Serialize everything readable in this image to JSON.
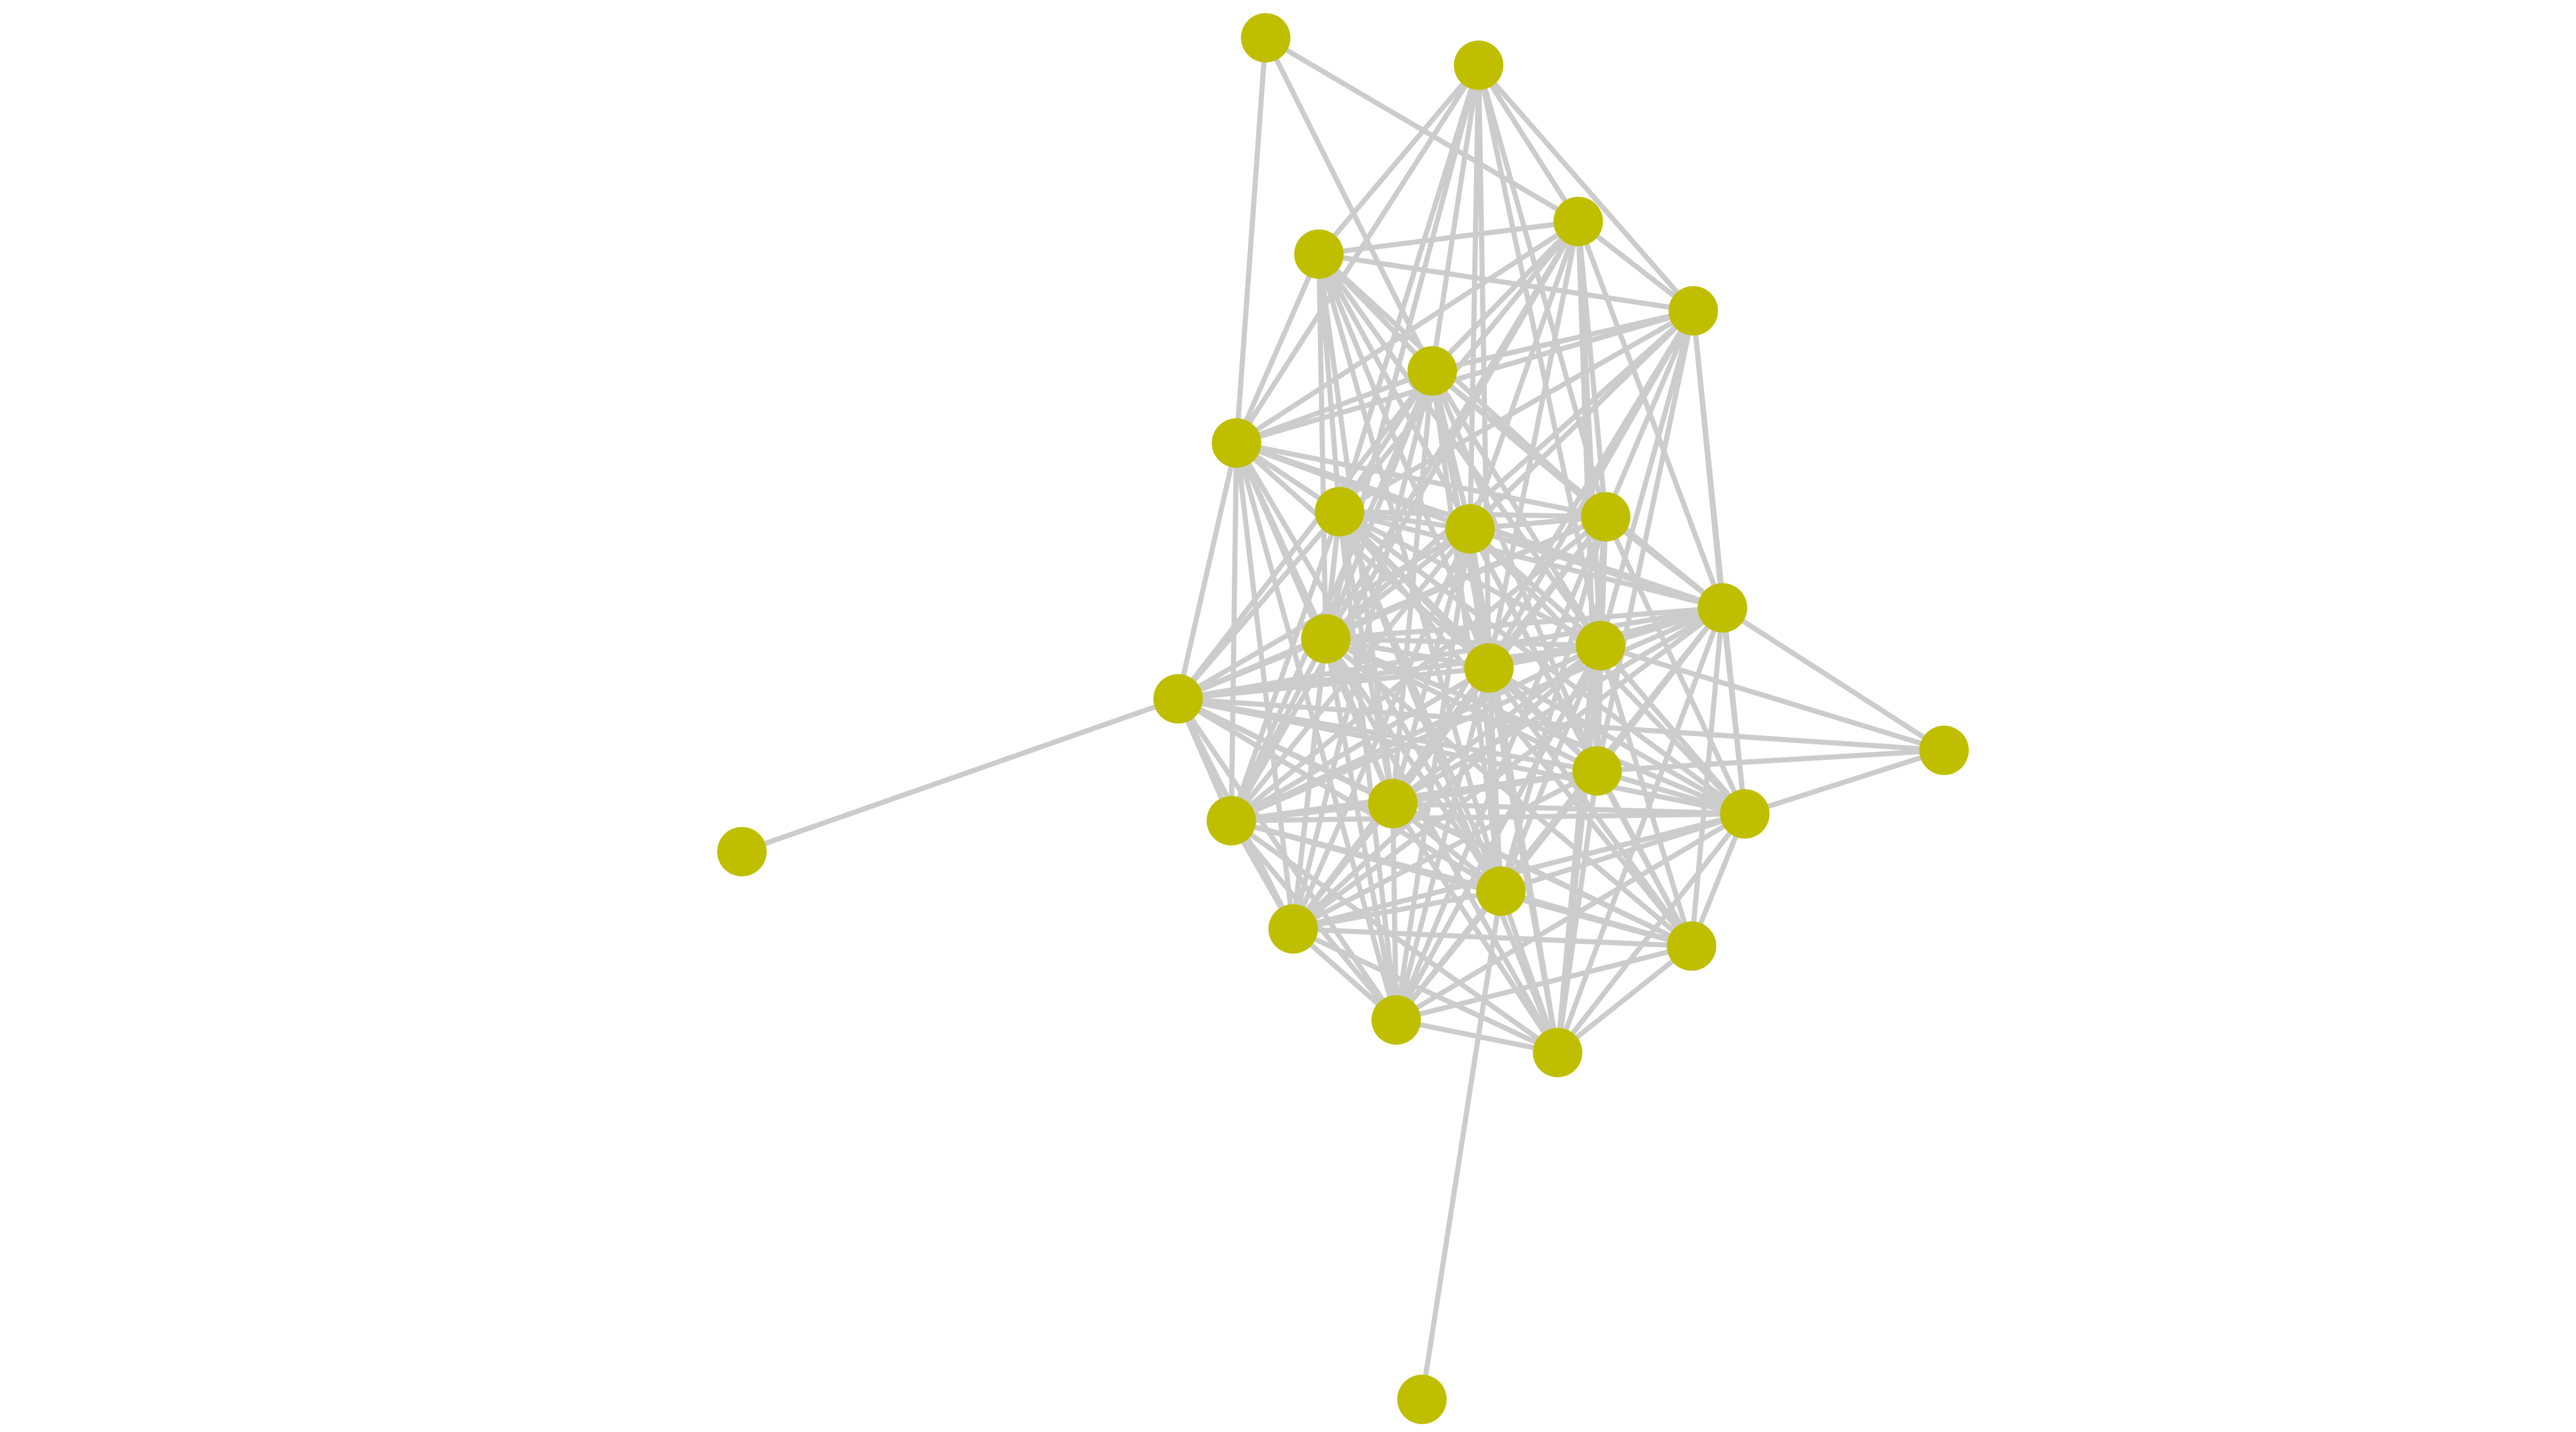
{
  "chart_data": {
    "type": "network",
    "directed": false,
    "node_color": "#bfbf00",
    "edge_color": "#cccccc",
    "background": "#ffffff",
    "labels_shown": false,
    "nodes": [
      0,
      1,
      2,
      3,
      4,
      5,
      6,
      7,
      8,
      9,
      10,
      11,
      12,
      13,
      14,
      15,
      16,
      17,
      18,
      19,
      20,
      21,
      22,
      23,
      24,
      25,
      26
    ],
    "adjacency": {
      "0": [
        2,
        5,
        6
      ],
      "1": [
        2,
        3,
        4,
        5,
        6,
        7,
        8,
        9,
        11,
        12,
        13
      ],
      "2": [
        3,
        4,
        5,
        6,
        7,
        8,
        9,
        10,
        11,
        12,
        13,
        16,
        18
      ],
      "3": [
        4,
        5,
        6,
        7,
        8,
        9,
        11,
        12,
        13,
        19,
        21
      ],
      "4": [
        5,
        6,
        7,
        8,
        9,
        10,
        11,
        12,
        13,
        16,
        19,
        20
      ],
      "5": [
        6,
        7,
        8,
        9,
        10,
        11,
        12,
        13,
        14,
        16,
        18,
        19,
        21,
        22
      ],
      "6": [
        7,
        8,
        9,
        10,
        11,
        12,
        14,
        18,
        19,
        21,
        22,
        24
      ],
      "7": [
        8,
        9,
        10,
        11,
        12,
        13,
        14,
        16,
        18,
        19,
        20,
        21,
        22,
        23,
        24,
        25
      ],
      "8": [
        9,
        10,
        11,
        12,
        13,
        14,
        16,
        18,
        19,
        20,
        21,
        22,
        23,
        24,
        25
      ],
      "9": [
        10,
        11,
        12,
        13,
        14,
        16,
        18,
        19,
        20,
        21,
        22,
        24,
        25
      ],
      "10": [
        11,
        12,
        13,
        14,
        15,
        16,
        18,
        19,
        20,
        21,
        22,
        23,
        24,
        25
      ],
      "11": [
        12,
        13,
        14,
        16,
        18,
        19,
        20,
        21,
        22,
        23,
        24,
        25
      ],
      "12": [
        13,
        14,
        16,
        18,
        19,
        20,
        21,
        22,
        23,
        24,
        25
      ],
      "13": [
        14,
        15,
        16,
        18,
        19,
        20,
        21,
        22,
        23,
        24,
        25
      ],
      "14": [
        15,
        16,
        17,
        18,
        19,
        20,
        21,
        22,
        23,
        24
      ],
      "15": [
        16,
        20
      ],
      "16": [
        18,
        19,
        20,
        21,
        22,
        23,
        24,
        25
      ],
      "18": [
        19,
        20,
        21,
        22,
        23,
        24,
        25
      ],
      "19": [
        20,
        21,
        22,
        23,
        24,
        25
      ],
      "20": [
        21,
        22,
        23,
        24,
        25
      ],
      "21": [
        22,
        23,
        24,
        25,
        26
      ],
      "22": [
        23,
        24,
        25
      ],
      "23": [
        24,
        25
      ],
      "24": [
        25
      ]
    }
  }
}
